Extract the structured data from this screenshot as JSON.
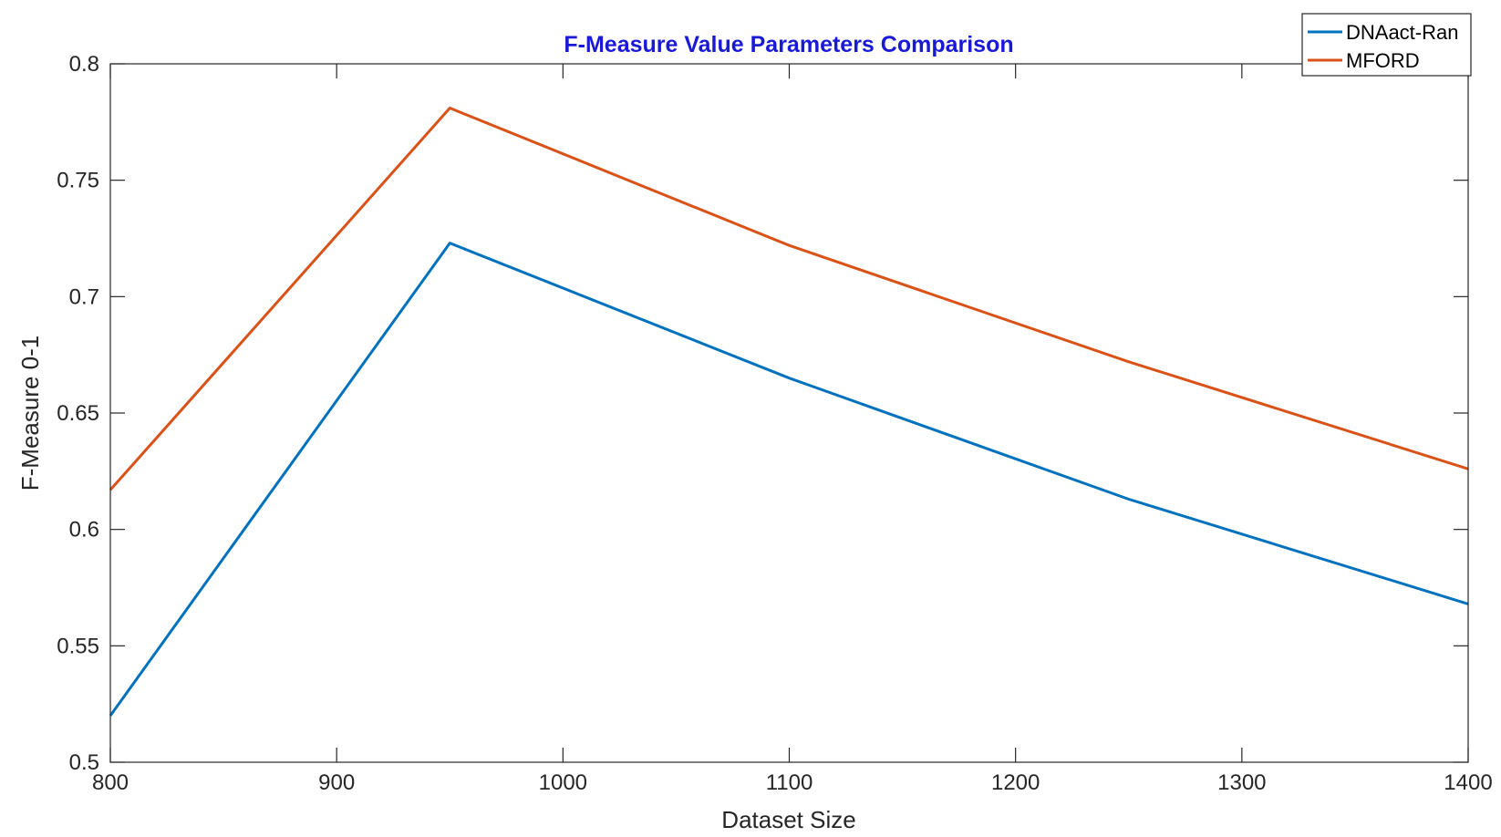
{
  "chart_data": {
    "type": "line",
    "title": "F-Measure Value Parameters Comparison",
    "xlabel": "Dataset Size",
    "ylabel": "F-Measure 0-1",
    "xlim": [
      800,
      1400
    ],
    "ylim": [
      0.5,
      0.8
    ],
    "xticks": [
      800,
      900,
      1000,
      1100,
      1200,
      1300,
      1400
    ],
    "yticks": [
      0.5,
      0.55,
      0.6,
      0.65,
      0.7,
      0.75,
      0.8
    ],
    "xtick_labels": [
      "800",
      "900",
      "1000",
      "1100",
      "1200",
      "1300",
      "1400"
    ],
    "ytick_labels": [
      "0.5",
      "0.55",
      "0.6",
      "0.65",
      "0.7",
      "0.75",
      "0.8"
    ],
    "grid": false,
    "legend_position": "top-right",
    "x": [
      800,
      950,
      1100,
      1250,
      1400
    ],
    "series": [
      {
        "name": "DNAact-Ran",
        "color": "#0072BD",
        "values": [
          0.52,
          0.723,
          0.665,
          0.613,
          0.568
        ]
      },
      {
        "name": "MFORD",
        "color": "#D95319",
        "values": [
          0.617,
          0.781,
          0.722,
          0.672,
          0.626
        ]
      }
    ],
    "title_color": "#1A1AD6"
  }
}
